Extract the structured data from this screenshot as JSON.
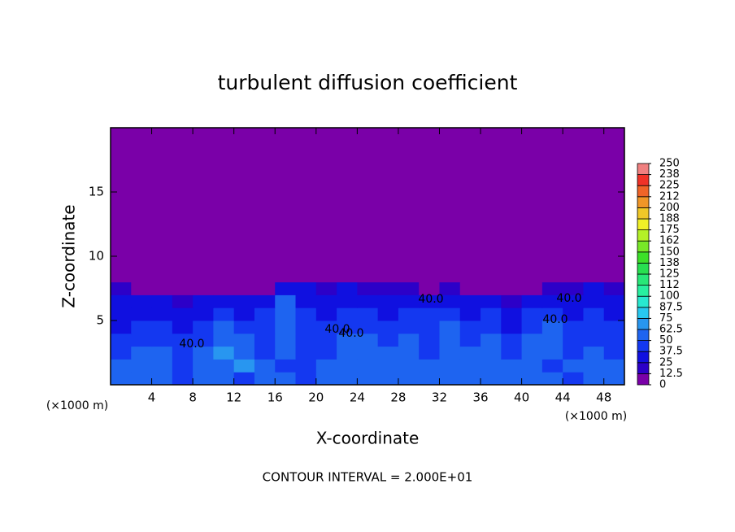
{
  "chart_data": {
    "type": "heatmap",
    "title": "turbulent diffusion coefficient",
    "x_label": "X-coordinate",
    "y_label": "Z-coordinate",
    "x_unit": "(×1000 m)",
    "note": "CONTOUR INTERVAL = 2.000E+01",
    "contour_labels": [
      "40.0",
      "40.0",
      "40.0",
      "40.0",
      "40.0",
      "40.0"
    ],
    "xlim": [
      0,
      50
    ],
    "ylim": [
      0,
      20
    ],
    "xticks": [
      4,
      8,
      12,
      16,
      20,
      24,
      28,
      32,
      36,
      40,
      44,
      48
    ],
    "yticks": [
      5,
      10,
      15
    ],
    "x_bins": [
      0,
      2,
      4,
      6,
      8,
      10,
      12,
      14,
      16,
      18,
      20,
      22,
      24,
      26,
      28,
      30,
      32,
      34,
      36,
      38,
      40,
      42,
      44,
      46,
      48,
      50
    ],
    "z_bins": [
      0,
      1,
      2,
      3,
      4,
      5,
      6,
      7,
      8,
      20
    ],
    "values": [
      [
        50,
        62,
        55,
        45,
        60,
        50,
        40,
        55,
        50,
        45,
        60,
        50,
        55,
        62,
        60,
        55,
        50,
        62,
        55,
        60,
        50,
        55,
        45,
        50,
        55
      ],
      [
        55,
        60,
        50,
        45,
        55,
        60,
        70,
        50,
        45,
        40,
        50,
        55,
        50,
        55,
        60,
        50,
        55,
        60,
        50,
        60,
        55,
        45,
        50,
        55,
        50
      ],
      [
        45,
        55,
        50,
        40,
        50,
        65,
        60,
        45,
        50,
        45,
        40,
        50,
        55,
        50,
        55,
        45,
        60,
        50,
        55,
        45,
        60,
        50,
        45,
        50,
        45
      ],
      [
        40,
        45,
        45,
        40,
        45,
        60,
        55,
        40,
        55,
        40,
        45,
        50,
        50,
        45,
        50,
        40,
        55,
        45,
        50,
        40,
        50,
        55,
        45,
        40,
        45
      ],
      [
        35,
        40,
        40,
        35,
        40,
        55,
        45,
        40,
        60,
        45,
        40,
        45,
        45,
        40,
        45,
        45,
        50,
        40,
        45,
        35,
        45,
        50,
        40,
        45,
        40
      ],
      [
        30,
        35,
        35,
        30,
        35,
        45,
        35,
        40,
        55,
        40,
        35,
        40,
        40,
        35,
        40,
        40,
        45,
        35,
        40,
        30,
        40,
        45,
        35,
        40,
        35
      ],
      [
        25,
        30,
        25,
        20,
        25,
        30,
        25,
        30,
        50,
        35,
        30,
        35,
        35,
        30,
        30,
        30,
        35,
        30,
        25,
        20,
        30,
        35,
        30,
        30,
        30
      ],
      [
        20,
        10,
        5,
        0,
        0,
        5,
        0,
        0,
        30,
        25,
        20,
        25,
        20,
        15,
        20,
        10,
        15,
        10,
        5,
        5,
        10,
        15,
        20,
        25,
        20
      ],
      [
        0,
        0,
        0,
        0,
        0,
        0,
        0,
        0,
        0,
        0,
        0,
        0,
        0,
        0,
        0,
        0,
        0,
        0,
        0,
        0,
        0,
        0,
        0,
        0,
        0
      ]
    ],
    "colorbar_ticks": [
      0,
      12.5,
      25,
      37.5,
      50,
      62.5,
      75,
      87.5,
      100,
      {
        "value": 112.5,
        "label": "112"
      },
      125,
      {
        "value": 137.5,
        "label": "138"
      },
      150,
      {
        "value": 162.5,
        "label": "162"
      },
      175,
      {
        "value": 187.5,
        "label": "188"
      },
      200,
      {
        "value": 212.5,
        "label": "212"
      },
      225,
      {
        "value": 237.5,
        "label": "238"
      },
      250
    ],
    "colors": [
      "#7a00a8",
      "#2c00c8",
      "#1010e0",
      "#1438f0",
      "#1e64f0",
      "#2896f0",
      "#28c8f0",
      "#28e8d0",
      "#28f0a0",
      "#28e878",
      "#28e050",
      "#3ce028",
      "#78e828",
      "#b4f028",
      "#f0f028",
      "#f0c828",
      "#f09628",
      "#f06428",
      "#f03228",
      "#f08080"
    ]
  }
}
